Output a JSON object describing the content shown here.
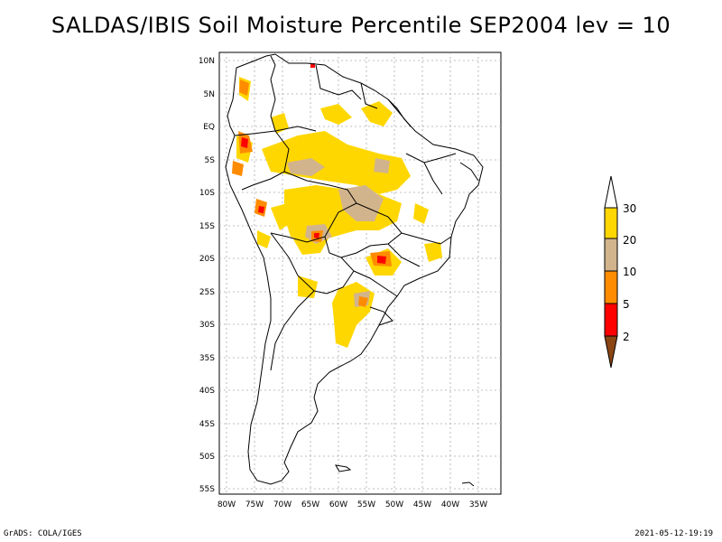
{
  "title": "SALDAS/IBIS Soil Moisture Percentile SEP2004 lev = 10",
  "y_ticks": [
    "10N",
    "5N",
    "EQ",
    "5S",
    "10S",
    "15S",
    "20S",
    "25S",
    "30S",
    "35S",
    "40S",
    "45S",
    "50S",
    "55S"
  ],
  "x_ticks": [
    "80W",
    "75W",
    "70W",
    "65W",
    "60W",
    "55W",
    "50W",
    "45W",
    "40W",
    "35W"
  ],
  "legend": {
    "labels": [
      "30",
      "20",
      "10",
      "5",
      "2"
    ],
    "colors": {
      "top_arrow": "#ffffff",
      "20_30": "#ffd700",
      "10_20": "#d2b48c",
      "5_10": "#ff8c00",
      "2_5": "#ff0000",
      "bottom_arrow": "#8b4513"
    }
  },
  "footer": {
    "left": "GrADS: COLA/IGES",
    "right": "2021-05-12-19:19"
  }
}
